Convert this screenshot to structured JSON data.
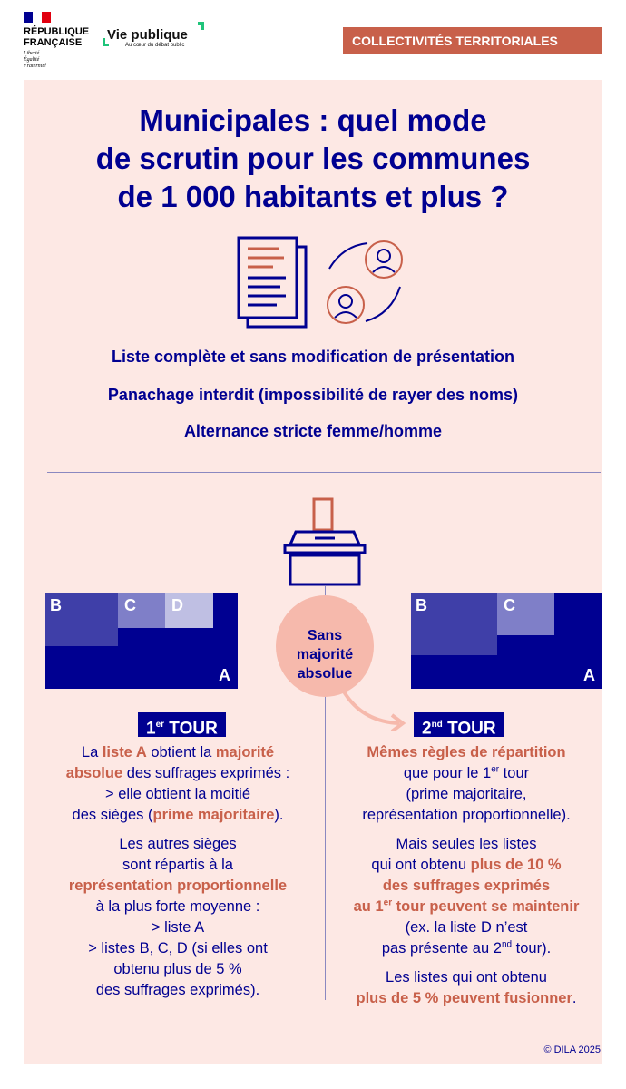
{
  "header": {
    "republic": "RÉPUBLIQUE\nFRANÇAISE",
    "motto": "Liberté\nÉgalité\nFraternité",
    "brand": "Vie publique",
    "brand_tagline": "Au cœur du débat public",
    "category": "COLLECTIVITÉS TERRITORIALES"
  },
  "title": "Municipales : quel mode\nde scrutin pour les communes\nde 1 000 habitants et plus ?",
  "rules": [
    "Liste complète et sans modification de présentation",
    "Panachage interdit (impossibilité de rayer des noms)",
    "Alternance stricte femme/homme"
  ],
  "colors": {
    "navy": "#000091",
    "accent": "#c8604a",
    "panel": "#fde8e4",
    "bubble": "#f6b9ac"
  },
  "round1": {
    "lists": [
      "A",
      "B",
      "C",
      "D"
    ],
    "label": "1",
    "label_sup": "er",
    "label_rest": " TOUR",
    "paragraphs": [
      [
        {
          "t": "La "
        },
        {
          "t": "liste A",
          "h": 1
        },
        {
          "t": " obtient la "
        },
        {
          "t": "majorité",
          "h": 1
        },
        {
          "t": "\n"
        },
        {
          "t": "absolue",
          "h": 1
        },
        {
          "t": " des suffrages exprimés :\n> elle obtient la moitié\ndes sièges ("
        },
        {
          "t": "prime majoritaire",
          "h": 1
        },
        {
          "t": ")."
        }
      ],
      [
        {
          "t": "Les autres sièges\nsont répartis à la\n"
        },
        {
          "t": "représentation proportionnelle",
          "h": 1
        },
        {
          "t": "\nà la plus forte moyenne :\n> liste A\n> listes B, C, D (si elles ont\nobtenu plus de 5 %\ndes suffrages exprimés)."
        }
      ]
    ]
  },
  "bubble": "Sans\nmajorité\nabsolue",
  "round2": {
    "lists": [
      "A",
      "B",
      "C"
    ],
    "label": "2",
    "label_sup": "nd",
    "label_rest": " TOUR",
    "paragraphs": [
      [
        {
          "t": "Mêmes règles de répartition",
          "h": 1
        },
        {
          "t": "\nque pour le 1"
        },
        {
          "t": "er",
          "s": 1
        },
        {
          "t": " tour\n(prime majoritaire,\nreprésentation proportionnelle)."
        }
      ],
      [
        {
          "t": "Mais seules les listes\nqui ont obtenu "
        },
        {
          "t": "plus de 10 %\ndes suffrages exprimés\nau 1",
          "h": 1
        },
        {
          "t": "er",
          "h": 1,
          "s": 1
        },
        {
          "t": " tour peuvent se maintenir",
          "h": 1
        },
        {
          "t": "\n(ex. la liste D n’est\npas présente au 2"
        },
        {
          "t": "nd",
          "s": 1
        },
        {
          "t": " tour)."
        }
      ],
      [
        {
          "t": "Les listes qui ont obtenu\n"
        },
        {
          "t": "plus de 5 % peuvent fusionner",
          "h": 1
        },
        {
          "t": "."
        }
      ]
    ]
  },
  "footer": {
    "copyright": "© DILA 2025"
  }
}
